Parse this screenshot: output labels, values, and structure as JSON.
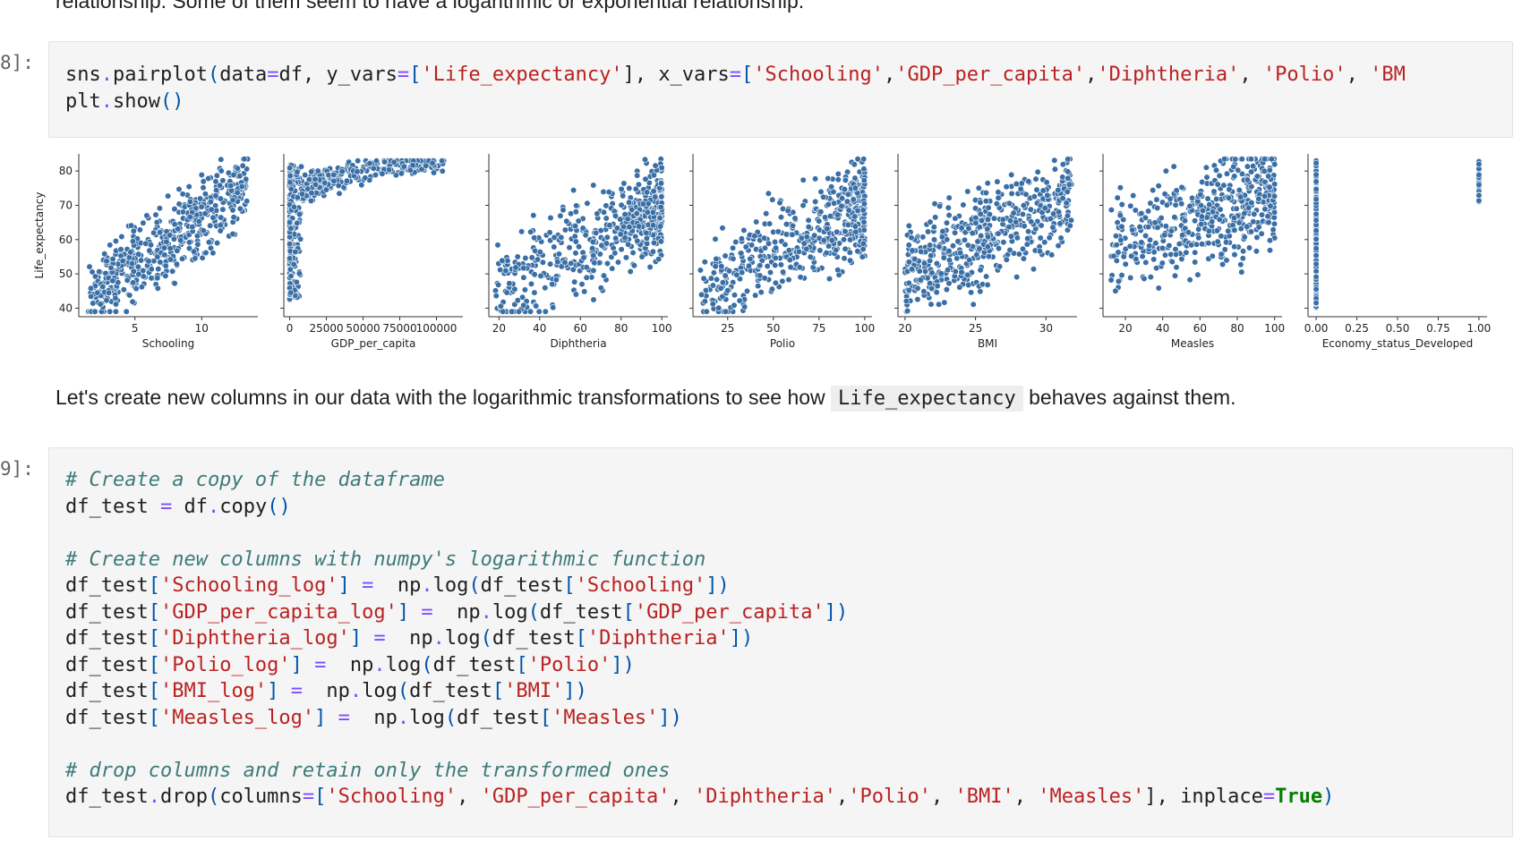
{
  "markdown_top": "relationship. Some of them seem to have a logarithmic or exponential relationship.",
  "cell8": {
    "prompt": "8]:",
    "lines": [
      [
        [
          "sns",
          "n"
        ],
        [
          ".",
          "op"
        ],
        [
          "pairplot",
          "n"
        ],
        [
          "(",
          "pn"
        ],
        [
          "data",
          "n"
        ],
        [
          "=",
          "op"
        ],
        [
          "df, y_vars",
          "n"
        ],
        [
          "=",
          "op"
        ],
        [
          "[",
          "pn"
        ],
        [
          "'Life_expectancy'",
          "str"
        ],
        [
          "], x_vars",
          "n"
        ],
        [
          "=",
          "op"
        ],
        [
          "[",
          "pn"
        ],
        [
          "'Schooling'",
          "str"
        ],
        [
          ",",
          "n"
        ],
        [
          "'GDP_per_capita'",
          "str"
        ],
        [
          ",",
          "n"
        ],
        [
          "'Diphtheria'",
          "str"
        ],
        [
          ", ",
          "n"
        ],
        [
          "'Polio'",
          "str"
        ],
        [
          ", ",
          "n"
        ],
        [
          "'BM",
          "str"
        ]
      ],
      [
        [
          "plt",
          "n"
        ],
        [
          ".",
          "op"
        ],
        [
          "show",
          "n"
        ],
        [
          "()",
          "pn"
        ]
      ]
    ]
  },
  "plot": {
    "ylabel": "Life_expectancy",
    "y_ticks": [
      40,
      50,
      60,
      70,
      80
    ],
    "color": "#3a6fa6",
    "panels": [
      {
        "xlabel": "Schooling",
        "ticks": [
          [
            "5",
            5
          ],
          [
            "10",
            10
          ]
        ],
        "xlim": [
          0.8,
          14.2
        ]
      },
      {
        "xlabel": "GDP_per_capita",
        "ticks": [
          [
            "0",
            0
          ],
          [
            "25000",
            25000
          ],
          [
            "50000",
            50000
          ],
          [
            "75000",
            75000
          ],
          [
            "100000",
            100000
          ]
        ],
        "xlim": [
          -4000,
          118000
        ]
      },
      {
        "xlabel": "Diphtheria",
        "ticks": [
          [
            "20",
            20
          ],
          [
            "40",
            40
          ],
          [
            "60",
            60
          ],
          [
            "80",
            80
          ],
          [
            "100",
            100
          ]
        ],
        "xlim": [
          15,
          103
        ]
      },
      {
        "xlabel": "Polio",
        "ticks": [
          [
            "25",
            25
          ],
          [
            "50",
            50
          ],
          [
            "75",
            75
          ],
          [
            "100",
            100
          ]
        ],
        "xlim": [
          6,
          104
        ]
      },
      {
        "xlabel": "BMI",
        "ticks": [
          [
            "20",
            20
          ],
          [
            "25",
            25
          ],
          [
            "30",
            30
          ]
        ],
        "xlim": [
          19.5,
          32.2
        ]
      },
      {
        "xlabel": "Measles",
        "ticks": [
          [
            "20",
            20
          ],
          [
            "40",
            40
          ],
          [
            "60",
            60
          ],
          [
            "80",
            80
          ],
          [
            "100",
            100
          ]
        ],
        "xlim": [
          8,
          104
        ]
      },
      {
        "xlabel": "Economy_status_Developed",
        "ticks": [
          [
            "0.00",
            0
          ],
          [
            "0.25",
            0.25
          ],
          [
            "0.50",
            0.5
          ],
          [
            "0.75",
            0.75
          ],
          [
            "1.00",
            1
          ]
        ],
        "xlim": [
          -0.05,
          1.05
        ]
      }
    ]
  },
  "markdown_mid": {
    "before": "Let's create new columns in our data with the logarithmic transformations to see how ",
    "code": "Life_expectancy",
    "after": " behaves against them."
  },
  "cell9": {
    "prompt": "9]:",
    "lines": [
      [
        [
          "# Create a copy of the dataframe",
          "cm"
        ]
      ],
      [
        [
          "df_test ",
          "n"
        ],
        [
          "=",
          "op"
        ],
        [
          " df",
          "n"
        ],
        [
          ".",
          "op"
        ],
        [
          "copy",
          "n"
        ],
        [
          "()",
          "pn"
        ]
      ],
      [],
      [
        [
          "# Create new columns with numpy's logarithmic function",
          "cm"
        ]
      ],
      [
        [
          "df_test",
          "n"
        ],
        [
          "[",
          "pn"
        ],
        [
          "'Schooling_log'",
          "str"
        ],
        [
          "]",
          "pn"
        ],
        [
          " ",
          "n"
        ],
        [
          "=",
          "op"
        ],
        [
          "  np",
          "n"
        ],
        [
          ".",
          "op"
        ],
        [
          "log",
          "n"
        ],
        [
          "(",
          "pn"
        ],
        [
          "df_test",
          "n"
        ],
        [
          "[",
          "pn"
        ],
        [
          "'Schooling'",
          "str"
        ],
        [
          "])",
          "pn"
        ]
      ],
      [
        [
          "df_test",
          "n"
        ],
        [
          "[",
          "pn"
        ],
        [
          "'GDP_per_capita_log'",
          "str"
        ],
        [
          "]",
          "pn"
        ],
        [
          " ",
          "n"
        ],
        [
          "=",
          "op"
        ],
        [
          "  np",
          "n"
        ],
        [
          ".",
          "op"
        ],
        [
          "log",
          "n"
        ],
        [
          "(",
          "pn"
        ],
        [
          "df_test",
          "n"
        ],
        [
          "[",
          "pn"
        ],
        [
          "'GDP_per_capita'",
          "str"
        ],
        [
          "])",
          "pn"
        ]
      ],
      [
        [
          "df_test",
          "n"
        ],
        [
          "[",
          "pn"
        ],
        [
          "'Diphtheria_log'",
          "str"
        ],
        [
          "]",
          "pn"
        ],
        [
          " ",
          "n"
        ],
        [
          "=",
          "op"
        ],
        [
          "  np",
          "n"
        ],
        [
          ".",
          "op"
        ],
        [
          "log",
          "n"
        ],
        [
          "(",
          "pn"
        ],
        [
          "df_test",
          "n"
        ],
        [
          "[",
          "pn"
        ],
        [
          "'Diphtheria'",
          "str"
        ],
        [
          "])",
          "pn"
        ]
      ],
      [
        [
          "df_test",
          "n"
        ],
        [
          "[",
          "pn"
        ],
        [
          "'Polio_log'",
          "str"
        ],
        [
          "]",
          "pn"
        ],
        [
          " ",
          "n"
        ],
        [
          "=",
          "op"
        ],
        [
          "  np",
          "n"
        ],
        [
          ".",
          "op"
        ],
        [
          "log",
          "n"
        ],
        [
          "(",
          "pn"
        ],
        [
          "df_test",
          "n"
        ],
        [
          "[",
          "pn"
        ],
        [
          "'Polio'",
          "str"
        ],
        [
          "])",
          "pn"
        ]
      ],
      [
        [
          "df_test",
          "n"
        ],
        [
          "[",
          "pn"
        ],
        [
          "'BMI_log'",
          "str"
        ],
        [
          "]",
          "pn"
        ],
        [
          " ",
          "n"
        ],
        [
          "=",
          "op"
        ],
        [
          "  np",
          "n"
        ],
        [
          ".",
          "op"
        ],
        [
          "log",
          "n"
        ],
        [
          "(",
          "pn"
        ],
        [
          "df_test",
          "n"
        ],
        [
          "[",
          "pn"
        ],
        [
          "'BMI'",
          "str"
        ],
        [
          "])",
          "pn"
        ]
      ],
      [
        [
          "df_test",
          "n"
        ],
        [
          "[",
          "pn"
        ],
        [
          "'Measles_log'",
          "str"
        ],
        [
          "]",
          "pn"
        ],
        [
          " ",
          "n"
        ],
        [
          "=",
          "op"
        ],
        [
          "  np",
          "n"
        ],
        [
          ".",
          "op"
        ],
        [
          "log",
          "n"
        ],
        [
          "(",
          "pn"
        ],
        [
          "df_test",
          "n"
        ],
        [
          "[",
          "pn"
        ],
        [
          "'Measles'",
          "str"
        ],
        [
          "])",
          "pn"
        ]
      ],
      [],
      [
        [
          "# drop columns and retain only the transformed ones",
          "cm"
        ]
      ],
      [
        [
          "df_test",
          "n"
        ],
        [
          ".",
          "op"
        ],
        [
          "drop",
          "n"
        ],
        [
          "(",
          "pn"
        ],
        [
          "columns",
          "n"
        ],
        [
          "=",
          "op"
        ],
        [
          "[",
          "pn"
        ],
        [
          "'Schooling'",
          "str"
        ],
        [
          ", ",
          "n"
        ],
        [
          "'GDP_per_capita'",
          "str"
        ],
        [
          ", ",
          "n"
        ],
        [
          "'Diphtheria'",
          "str"
        ],
        [
          ",",
          "n"
        ],
        [
          "'Polio'",
          "str"
        ],
        [
          ", ",
          "n"
        ],
        [
          "'BMI'",
          "str"
        ],
        [
          ", ",
          "n"
        ],
        [
          "'Measles'",
          "str"
        ],
        [
          "], inplace",
          "n"
        ],
        [
          "=",
          "op"
        ],
        [
          "True",
          "kw"
        ],
        [
          ")",
          "pn"
        ]
      ]
    ]
  }
}
